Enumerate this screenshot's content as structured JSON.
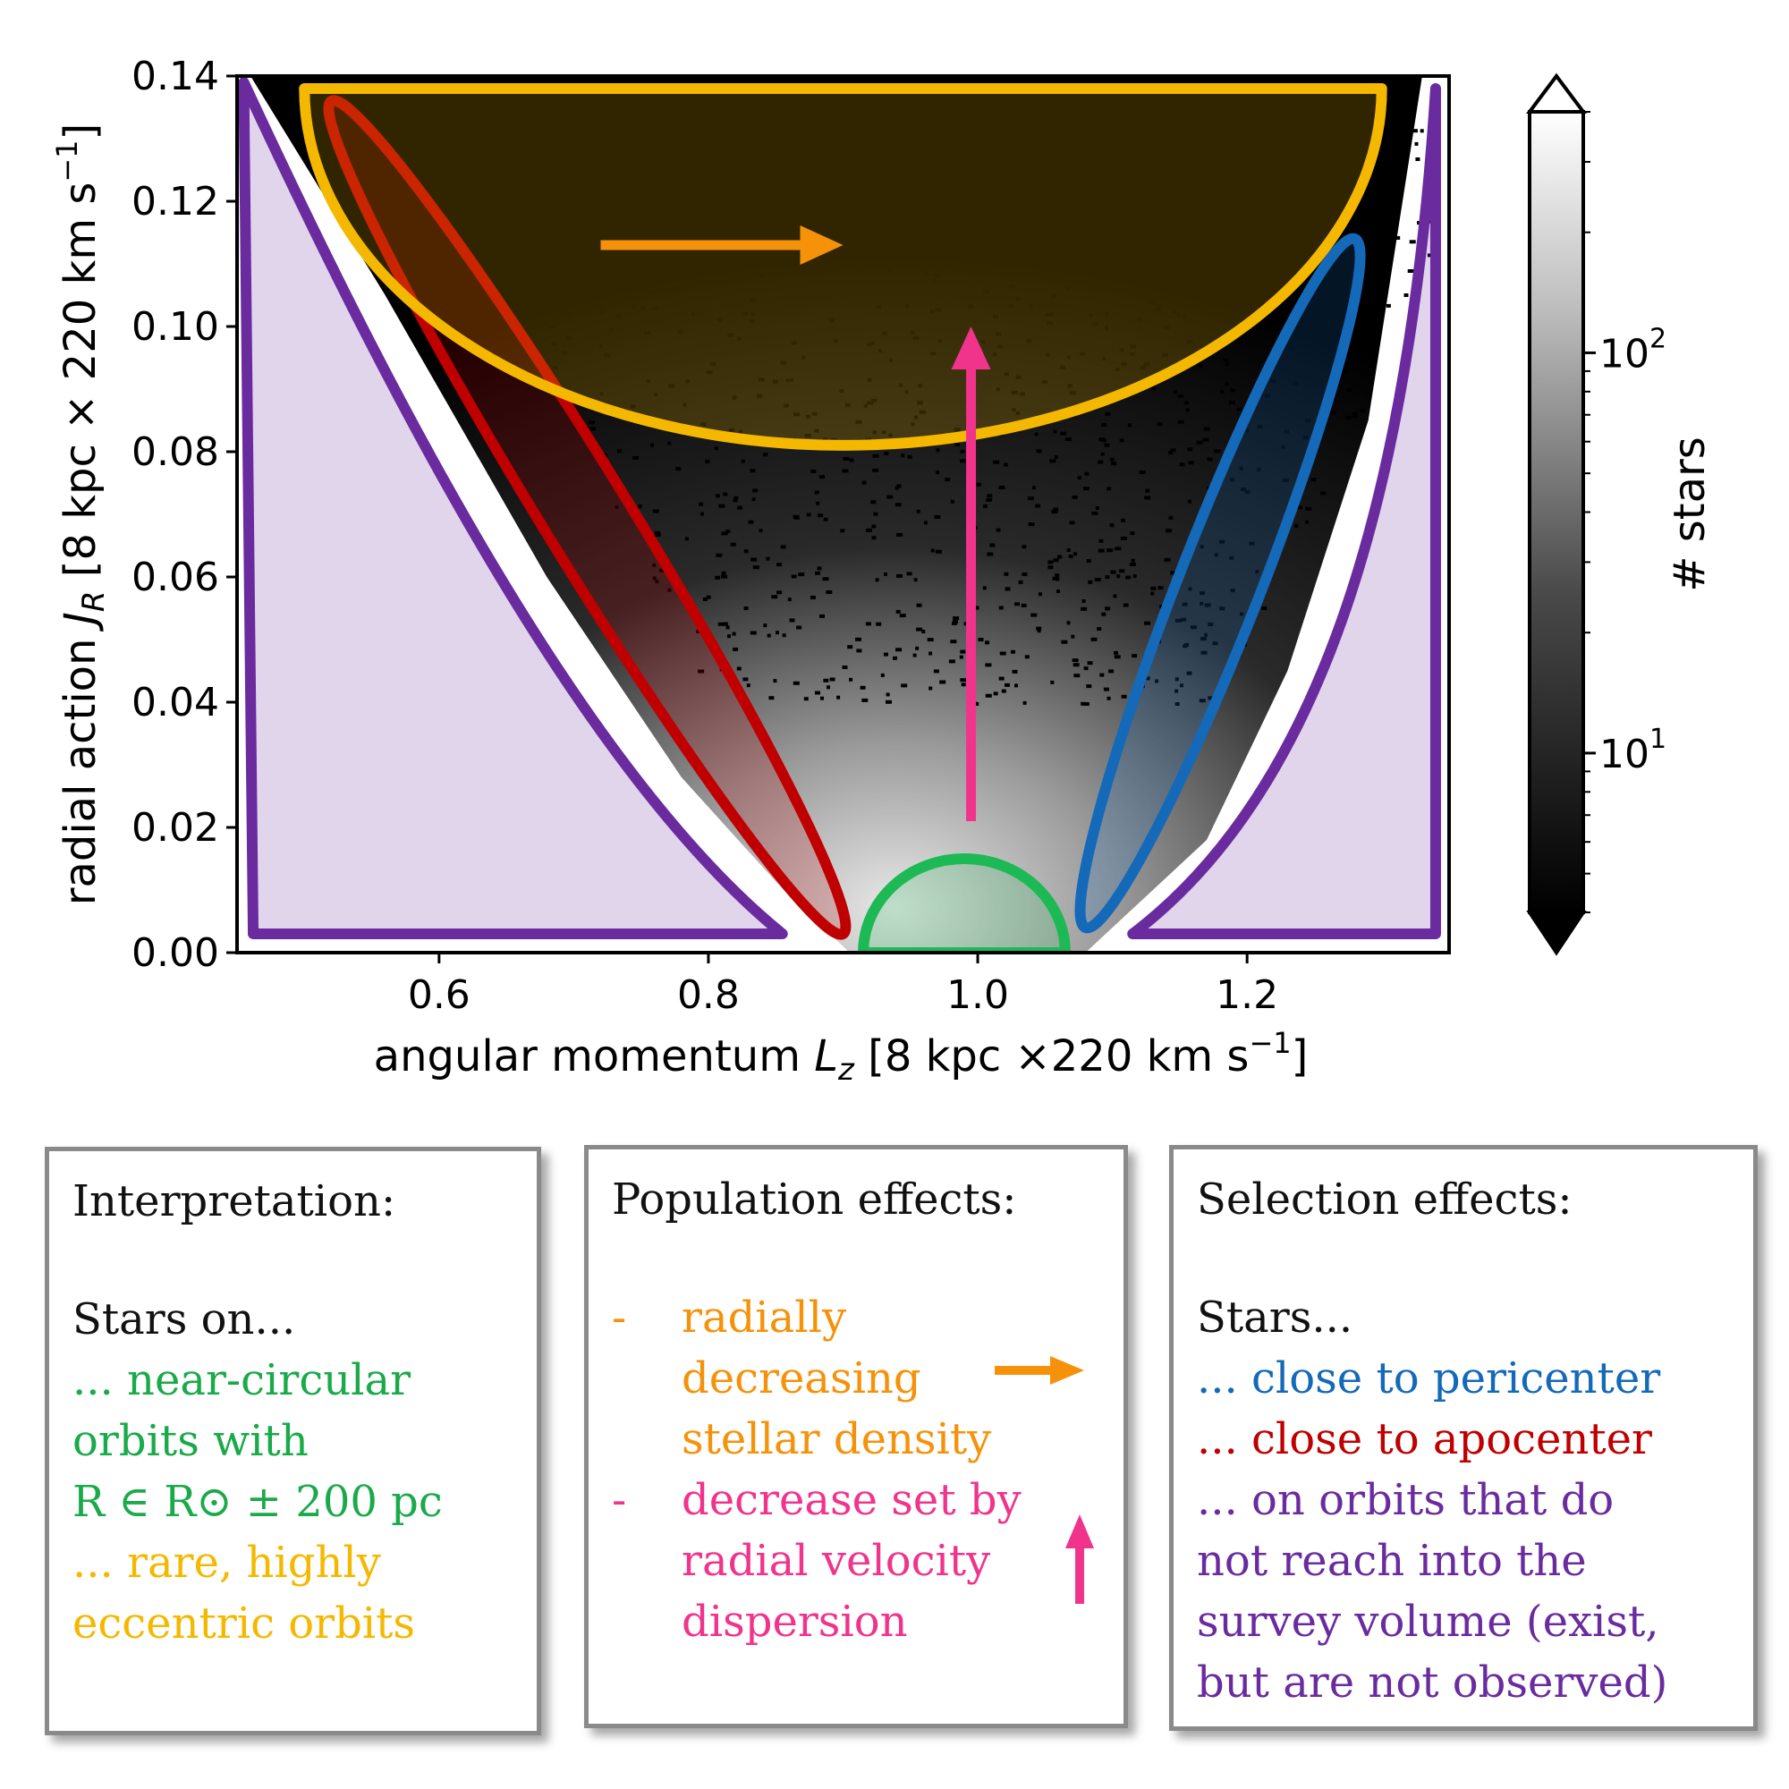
{
  "chart_data": {
    "type": "heatmap",
    "xlabel_prefix": "angular momentum ",
    "xlabel_symbol": "L",
    "xlabel_sub": "z",
    "xlabel_suffix": " [8 kpc  ×220 km s",
    "xlabel_exp": "−1",
    "xlabel_close": "]",
    "ylabel_prefix": "radial action ",
    "ylabel_symbol": "J",
    "ylabel_sub": "R",
    "ylabel_suffix": " [8 kpc  × 220 km s",
    "ylabel_exp": "−1",
    "ylabel_close": "]",
    "xlim": [
      0.45,
      1.35
    ],
    "ylim": [
      0.0,
      0.14
    ],
    "xticks": [
      {
        "value": 0.6,
        "label": "0.6"
      },
      {
        "value": 0.8,
        "label": "0.8"
      },
      {
        "value": 1.0,
        "label": "1.0"
      },
      {
        "value": 1.2,
        "label": "1.2"
      }
    ],
    "yticks": [
      {
        "value": 0.0,
        "label": "0.00"
      },
      {
        "value": 0.02,
        "label": "0.02"
      },
      {
        "value": 0.04,
        "label": "0.04"
      },
      {
        "value": 0.06,
        "label": "0.06"
      },
      {
        "value": 0.08,
        "label": "0.08"
      },
      {
        "value": 0.1,
        "label": "0.10"
      },
      {
        "value": 0.12,
        "label": "0.12"
      },
      {
        "value": 0.14,
        "label": "0.14"
      }
    ],
    "colorbar": {
      "label": "# stars",
      "scale": "log",
      "range": [
        4,
        400
      ],
      "ticks": [
        {
          "value": 10,
          "base": "10",
          "exp": "1"
        },
        {
          "value": 100,
          "base": "10",
          "exp": "2"
        }
      ],
      "extend": "both"
    },
    "regions": [
      {
        "name": "near-circular",
        "shape": "half-ellipse",
        "center": [
          0.99,
          0.0
        ],
        "semi_x": 0.075,
        "semi_y": 0.015,
        "color": "#1db954"
      },
      {
        "name": "eccentric",
        "shape": "half-ellipse",
        "center": [
          0.9,
          0.138
        ],
        "semi_x": 0.4,
        "semi_y": 0.057,
        "color": "#f5b800"
      },
      {
        "name": "apocenter",
        "shape": "ellipse",
        "from": [
          0.52,
          0.136
        ],
        "to": [
          0.9,
          0.003
        ],
        "color": "#c00000"
      },
      {
        "name": "pericenter",
        "shape": "ellipse",
        "from": [
          1.28,
          0.114
        ],
        "to": [
          1.08,
          0.004
        ],
        "color": "#1469b8"
      },
      {
        "name": "unobserved",
        "shape": "boundary",
        "color": "#6a2b9e"
      }
    ],
    "arrows": [
      {
        "name": "density-arrow",
        "from": [
          0.72,
          0.113
        ],
        "to": [
          0.9,
          0.113
        ],
        "color": "#f5920a"
      },
      {
        "name": "dispersion-arrow",
        "from": [
          0.995,
          0.021
        ],
        "to": [
          0.995,
          0.1
        ],
        "color": "#f0348c"
      }
    ]
  },
  "interpretation": {
    "title": "Interpretation:",
    "lines": [
      {
        "text": "Stars on...",
        "color": "dark"
      },
      {
        "text": "... near-circular",
        "color": "green"
      },
      {
        "text": "orbits  with",
        "color": "green"
      },
      {
        "text": "R ∈ R⊙ ± 200 pc",
        "color": "green"
      },
      {
        "text": "... rare, highly",
        "color": "yellow"
      },
      {
        "text": "eccentric orbits",
        "color": "yellow"
      }
    ]
  },
  "population": {
    "title": "Population effects:",
    "bullet": "-",
    "lines": [
      {
        "text": "radially",
        "color": "orange"
      },
      {
        "text": "decreasing",
        "color": "orange"
      },
      {
        "text": "stellar density",
        "color": "orange"
      },
      {
        "text": "decrease set by",
        "color": "pink"
      },
      {
        "text": "radial velocity",
        "color": "pink"
      },
      {
        "text": "dispersion",
        "color": "pink"
      }
    ]
  },
  "selection": {
    "title": "Selection effects:",
    "lines": [
      {
        "text": "Stars...",
        "color": "dark"
      },
      {
        "text": "... close to pericenter",
        "color": "blue"
      },
      {
        "text": "... close to apocenter",
        "color": "red"
      },
      {
        "text": "... on orbits that do",
        "color": "purple"
      },
      {
        "text": "not reach into the",
        "color": "purple"
      },
      {
        "text": "survey volume (exist,",
        "color": "purple"
      },
      {
        "text": "but are not observed)",
        "color": "purple"
      }
    ]
  },
  "colors": {
    "green": "#1aaa4a",
    "yellow": "#f5b800",
    "blue": "#1469b8",
    "red": "#c00000",
    "purple": "#6a2b9e",
    "orange": "#f5920a",
    "pink": "#f0348c"
  }
}
